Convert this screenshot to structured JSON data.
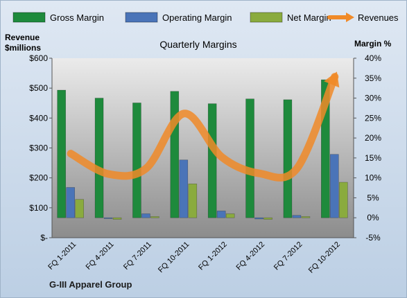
{
  "chart_data": {
    "type": "bar",
    "title": "Quarterly Margins",
    "categories": [
      "FQ 1-2011",
      "FQ 4-2011",
      "FQ 7-2011",
      "FQ 10-2011",
      "FQ 1-2012",
      "FQ 4-2012",
      "FQ 7-2012",
      "FQ 10-2012"
    ],
    "series": [
      {
        "name": "Gross Margin",
        "axis": "right",
        "values": [
          32.0,
          30.0,
          28.8,
          31.7,
          28.6,
          29.8,
          29.6,
          34.6
        ],
        "color": "#1e8a3c"
      },
      {
        "name": "Operating Margin",
        "axis": "right",
        "values": [
          7.6,
          -0.2,
          1.0,
          14.5,
          1.7,
          -0.3,
          0.6,
          15.9
        ],
        "color": "#4a74b8"
      },
      {
        "name": "Net Margin",
        "axis": "right",
        "values": [
          4.6,
          -0.4,
          0.3,
          8.5,
          1.0,
          -0.4,
          0.3,
          8.9
        ],
        "color": "#8aab3e"
      },
      {
        "name": "Revenues",
        "axis": "left",
        "type": "line",
        "values": [
          281,
          213,
          232,
          415,
          270,
          215,
          232,
          538
        ],
        "color": "#f08a28"
      }
    ],
    "left_axis": {
      "label_line1": "Revenue",
      "label_line2": "$millions",
      "ylim": [
        0,
        600
      ],
      "ticks": [
        0,
        100,
        200,
        300,
        400,
        500,
        600
      ],
      "tick_labels": [
        "$-",
        "$100",
        "$200",
        "$300",
        "$400",
        "$500",
        "$600"
      ]
    },
    "right_axis": {
      "label": "Margin %",
      "ylim": [
        -5,
        40
      ],
      "ticks": [
        -5,
        0,
        5,
        10,
        15,
        20,
        25,
        30,
        35,
        40
      ],
      "tick_labels": [
        "-5%",
        "0%",
        "5%",
        "10%",
        "15%",
        "20%",
        "25%",
        "30%",
        "35%",
        "40%"
      ]
    },
    "legend_position": "top",
    "grid": false
  },
  "footer": {
    "company": "G-III Apparel Group"
  }
}
